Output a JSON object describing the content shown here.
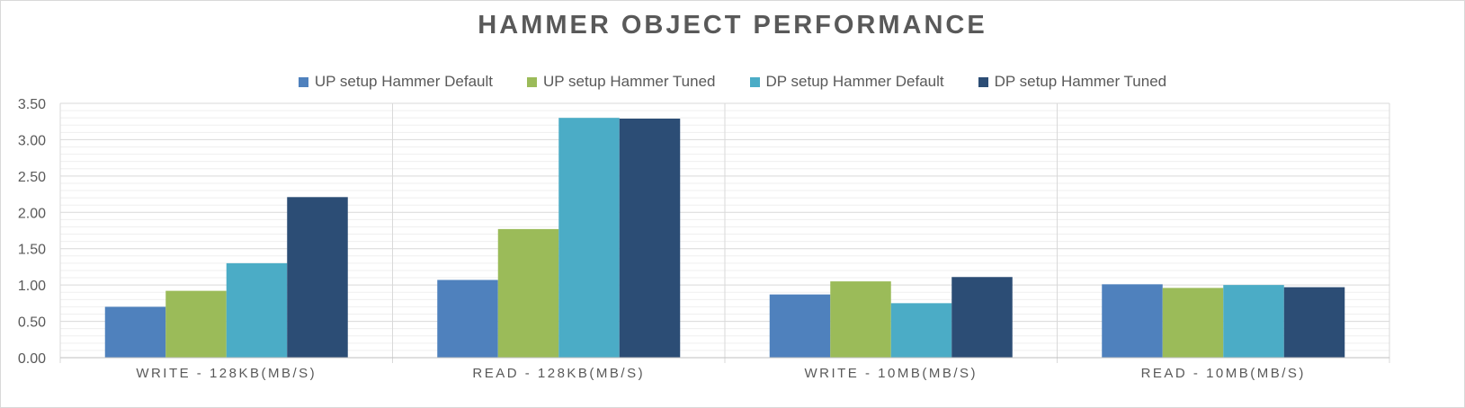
{
  "chart_data": {
    "type": "bar",
    "title": "HAMMER  OBJECT  PERFORMANCE",
    "categories": [
      "WRITE - 128KB(MB/S)",
      "READ - 128KB(MB/S)",
      "WRITE - 10MB(MB/S)",
      "READ -  10MB(MB/S)"
    ],
    "series": [
      {
        "name": "UP setup Hammer Default",
        "color": "#4f81bd",
        "values": [
          0.7,
          1.07,
          0.87,
          1.01
        ]
      },
      {
        "name": "UP setup Hammer Tuned",
        "color": "#9bbb59",
        "values": [
          0.92,
          1.77,
          1.05,
          0.96
        ]
      },
      {
        "name": "DP setup Hammer Default",
        "color": "#4bacc6",
        "values": [
          1.3,
          3.3,
          0.75,
          1.0
        ]
      },
      {
        "name": "DP setup Hammer Tuned",
        "color": "#2c4d75",
        "values": [
          2.21,
          3.29,
          1.11,
          0.97
        ]
      }
    ],
    "yticks": [
      "0.00",
      "0.50",
      "1.00",
      "1.50",
      "2.00",
      "2.50",
      "3.00",
      "3.50"
    ],
    "ylim": [
      0,
      3.5
    ],
    "xlabel": "",
    "ylabel": "",
    "grid": true,
    "legend_position": "top"
  }
}
